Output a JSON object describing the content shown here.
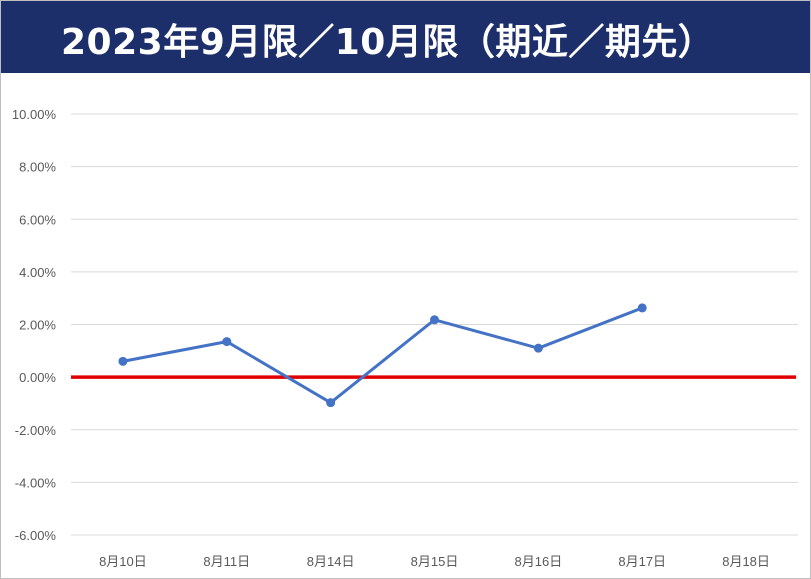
{
  "header": {
    "title": "2023年9月限／10月限（期近／期先）"
  },
  "chart_data": {
    "type": "line",
    "title": "2023年9月限／10月限（期近／期先）",
    "categories": [
      "8月10日",
      "8月11日",
      "8月14日",
      "8月15日",
      "8月16日",
      "8月17日",
      "8月18日"
    ],
    "series": [
      {
        "values": [
          0.6,
          1.35,
          -0.97,
          2.18,
          1.1,
          2.63,
          null
        ]
      }
    ],
    "y_ticks": [
      "10.00%",
      "8.00%",
      "6.00%",
      "4.00%",
      "2.00%",
      "0.00%",
      "-2.00%",
      "-4.00%",
      "-6.00%"
    ],
    "ylim": [
      -6,
      10
    ],
    "y_unit": "%",
    "reference_line": {
      "value": 0,
      "color": "#e00000"
    },
    "series_color": "#4472c4",
    "grid": true,
    "legend": "none"
  }
}
